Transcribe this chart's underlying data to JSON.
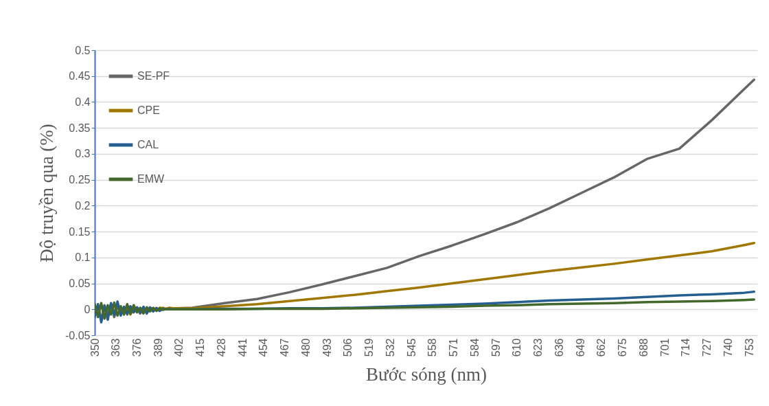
{
  "chart_data": {
    "type": "line",
    "xlabel": "Bước sóng (nm)",
    "ylabel": "Độ truyền qua (%)",
    "x": [
      350,
      352,
      354,
      356,
      358,
      360,
      362,
      364,
      366,
      368,
      370,
      372,
      374,
      376,
      378,
      380,
      382,
      384,
      386,
      388,
      390,
      392,
      394,
      396,
      398,
      400,
      410,
      430,
      450,
      470,
      490,
      510,
      530,
      550,
      570,
      590,
      610,
      630,
      650,
      670,
      690,
      710,
      730,
      750,
      756
    ],
    "series": [
      {
        "name": "SE-PF",
        "color": "#666666",
        "values": [
          -0.01,
          0.005,
          -0.02,
          0.008,
          -0.012,
          0.01,
          -0.015,
          0.006,
          -0.008,
          0.004,
          -0.01,
          0.005,
          -0.006,
          0.003,
          -0.008,
          0.002,
          -0.005,
          0.004,
          -0.003,
          0.003,
          -0.002,
          0.003,
          0,
          0.002,
          0.001,
          0.002,
          0.003,
          0.012,
          0.02,
          0.033,
          0.048,
          0.064,
          0.08,
          0.103,
          0.123,
          0.145,
          0.168,
          0.195,
          0.225,
          0.255,
          0.29,
          0.31,
          0.365,
          0.425,
          0.443
        ]
      },
      {
        "name": "CPE",
        "color": "#a07800",
        "values": [
          null,
          null,
          null,
          null,
          null,
          null,
          null,
          null,
          null,
          -0.005,
          0.002,
          -0.01,
          0.003,
          -0.004,
          0.002,
          -0.006,
          0.001,
          -0.003,
          0.002,
          -0.002,
          0.003,
          0.002,
          0.001,
          0.003,
          0.002,
          0.002,
          0.002,
          0.006,
          0.01,
          0.016,
          0.022,
          0.028,
          0.035,
          0.042,
          0.05,
          0.058,
          0.066,
          0.074,
          0.081,
          0.088,
          0.096,
          0.104,
          0.112,
          0.124,
          0.128
        ]
      },
      {
        "name": "CAL",
        "color": "#255e91",
        "values": [
          -0.015,
          0.01,
          -0.025,
          0.006,
          -0.02,
          0.012,
          -0.01,
          0.015,
          -0.012,
          0.005,
          -0.008,
          0.006,
          -0.005,
          0.004,
          -0.006,
          0.005,
          -0.008,
          0.003,
          -0.004,
          0.002,
          -0.003,
          0.001,
          0,
          0.001,
          0,
          0,
          0,
          0.001,
          0.001,
          0.002,
          0.002,
          0.003,
          0.005,
          0.007,
          0.009,
          0.011,
          0.014,
          0.017,
          0.019,
          0.021,
          0.024,
          0.027,
          0.029,
          0.032,
          0.034
        ]
      },
      {
        "name": "EMW",
        "color": "#43682b",
        "values": [
          0.01,
          -0.015,
          0.012,
          -0.018,
          0.008,
          -0.01,
          0.013,
          -0.012,
          0.006,
          -0.01,
          0.01,
          -0.008,
          0.008,
          -0.006,
          0.003,
          -0.008,
          0.004,
          -0.004,
          0.003,
          -0.003,
          0.002,
          -0.001,
          0.001,
          0,
          0,
          0,
          0,
          0,
          0.001,
          0.001,
          0.001,
          0.002,
          0.003,
          0.004,
          0.005,
          0.007,
          0.008,
          0.01,
          0.011,
          0.012,
          0.014,
          0.015,
          0.016,
          0.018,
          0.019
        ]
      }
    ],
    "xlim": [
      350,
      758
    ],
    "xticks": [
      350,
      363,
      376,
      389,
      402,
      415,
      428,
      441,
      454,
      467,
      480,
      493,
      506,
      519,
      532,
      545,
      558,
      571,
      584,
      597,
      610,
      623,
      636,
      649,
      662,
      675,
      688,
      701,
      714,
      727,
      740,
      753
    ],
    "ylim": [
      -0.05,
      0.5
    ],
    "yticks": [
      -0.05,
      0,
      0.05,
      0.1,
      0.15,
      0.2,
      0.25,
      0.3,
      0.35,
      0.4,
      0.45,
      0.5
    ],
    "grid": "y",
    "legend": "top left",
    "marker": "none",
    "line_style": "solid"
  }
}
